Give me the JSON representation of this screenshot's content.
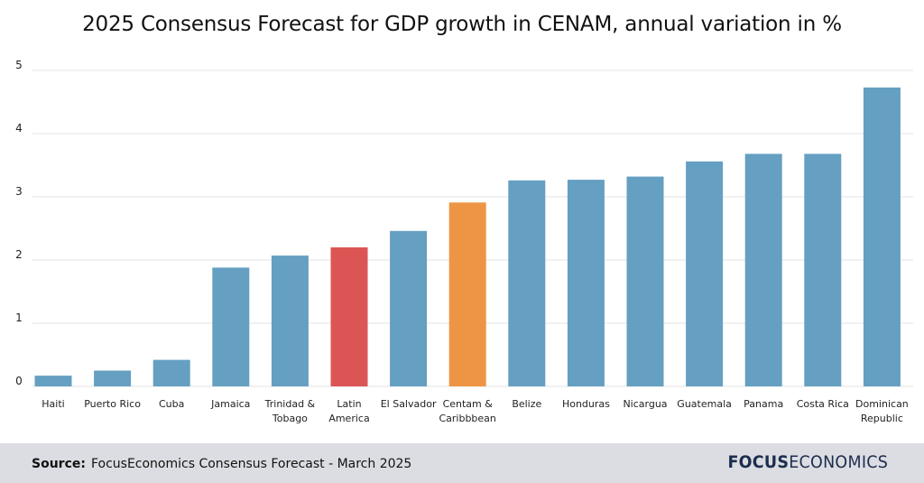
{
  "title": "2025 Consensus Forecast for GDP growth in CENAM, annual variation in %",
  "colors": {
    "default_bar": "#659fc2",
    "latin_america": "#dc5555",
    "centam_caribbean": "#ee9545",
    "grid": "#e3e3e3",
    "text": "#222222"
  },
  "footer": {
    "source_label": "Source:",
    "source_text": "FocusEconomics Consensus Forecast - March 2025",
    "logo_bold": "FOCUS",
    "logo_light": "ECONOMICS"
  },
  "chart_data": {
    "type": "bar",
    "title": "2025 Consensus Forecast for GDP growth in CENAM, annual variation in %",
    "xlabel": "",
    "ylabel": "",
    "ylim": [
      0,
      5
    ],
    "yticks": [
      0,
      1,
      2,
      3,
      4,
      5
    ],
    "grid": true,
    "categories": [
      [
        "Haiti"
      ],
      [
        "Puerto Rico"
      ],
      [
        "Cuba"
      ],
      [
        "Jamaica"
      ],
      [
        "Trinidad &",
        "Tobago"
      ],
      [
        "Latin",
        "America"
      ],
      [
        "El Salvador"
      ],
      [
        "Centam &",
        "Caribbbean"
      ],
      [
        "Belize"
      ],
      [
        "Honduras"
      ],
      [
        "Nicargua"
      ],
      [
        "Guatemala"
      ],
      [
        "Panama"
      ],
      [
        "Costa Rica"
      ],
      [
        "Dominican",
        "Republic"
      ]
    ],
    "values": [
      0.17,
      0.25,
      0.42,
      1.88,
      2.07,
      2.2,
      2.46,
      2.91,
      3.26,
      3.27,
      3.32,
      3.56,
      3.68,
      3.68,
      4.73
    ],
    "highlight": {
      "5": "latin_america",
      "7": "centam_caribbean"
    }
  }
}
